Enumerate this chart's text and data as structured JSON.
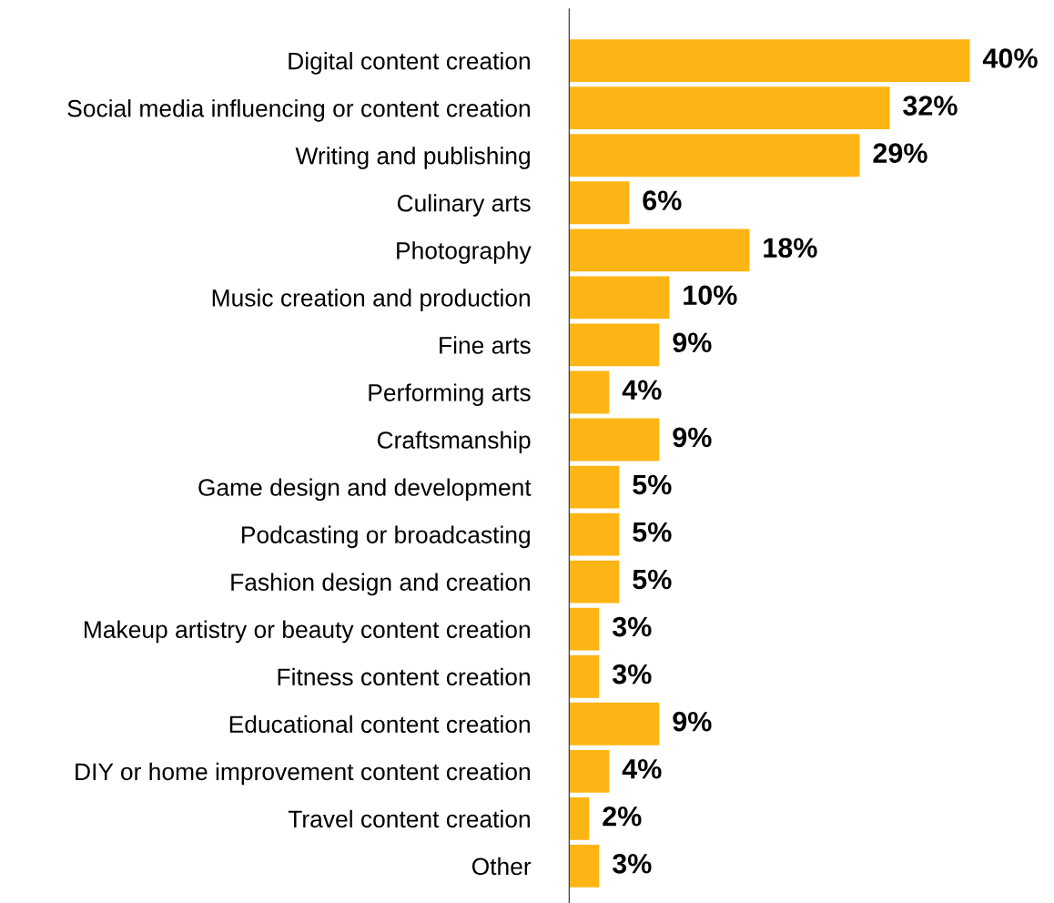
{
  "chart_data": {
    "type": "bar",
    "orientation": "horizontal",
    "categories": [
      "Digital content creation",
      "Social media influencing or content creation",
      "Writing and publishing",
      "Culinary arts",
      "Photography",
      "Music creation and production",
      "Fine arts",
      "Performing arts",
      "Craftsmanship",
      "Game design and development",
      "Podcasting or broadcasting",
      "Fashion design and creation",
      "Makeup artistry or beauty content creation",
      "Fitness content creation",
      "Educational content creation",
      "DIY or home improvement content creation",
      "Travel content creation",
      "Other"
    ],
    "values": [
      40,
      32,
      29,
      6,
      18,
      10,
      9,
      4,
      9,
      5,
      5,
      5,
      3,
      3,
      9,
      4,
      2,
      3
    ],
    "value_labels": [
      "40%",
      "32%",
      "29%",
      "6%",
      "18%",
      "10%",
      "9%",
      "4%",
      "9%",
      "5%",
      "5%",
      "5%",
      "3%",
      "3%",
      "9%",
      "4%",
      "2%",
      "3%"
    ],
    "color": "#fdb515",
    "grid": false,
    "legend": false
  }
}
